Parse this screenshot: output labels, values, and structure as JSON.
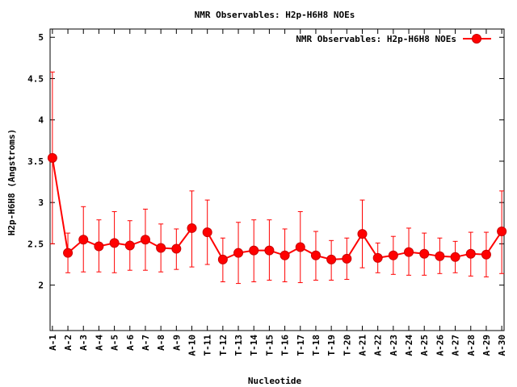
{
  "chart_data": {
    "type": "line",
    "title": "NMR Observables: H2p-H6H8 NOEs",
    "xlabel": "Nucleotide",
    "ylabel": "H2p-H6H8 (Angstroms)",
    "ylim": [
      1.45,
      5.1
    ],
    "yticks": [
      2,
      2.5,
      3,
      3.5,
      4,
      4.5,
      5
    ],
    "ytick_labels": [
      "2",
      "2.5",
      "3",
      "3.5",
      "4",
      "4.5",
      "5"
    ],
    "grid": false,
    "legend_position": "top-right",
    "categories": [
      "A-1",
      "A-2",
      "A-3",
      "A-4",
      "A-5",
      "A-6",
      "A-7",
      "A-8",
      "A-9",
      "A-10",
      "T-11",
      "T-12",
      "T-13",
      "T-14",
      "T-15",
      "T-16",
      "T-17",
      "T-18",
      "T-19",
      "T-20",
      "A-21",
      "A-22",
      "A-23",
      "A-24",
      "A-25",
      "A-26",
      "A-27",
      "A-28",
      "A-29",
      "A-30"
    ],
    "segments": [
      [
        1,
        10
      ],
      [
        11,
        30
      ]
    ],
    "series": [
      {
        "name": "NMR Observables: H2p-H6H8 NOEs",
        "color": "#ff0000",
        "x": [
          1,
          2,
          3,
          4,
          5,
          6,
          7,
          8,
          9,
          10,
          11,
          12,
          13,
          14,
          15,
          16,
          17,
          18,
          19,
          20,
          21,
          22,
          23,
          24,
          25,
          26,
          27,
          28,
          29,
          30
        ],
        "values": [
          3.54,
          2.39,
          2.55,
          2.47,
          2.51,
          2.48,
          2.55,
          2.45,
          2.44,
          2.69,
          2.64,
          2.31,
          2.39,
          2.42,
          2.42,
          2.36,
          2.46,
          2.36,
          2.31,
          2.32,
          2.62,
          2.33,
          2.36,
          2.4,
          2.38,
          2.35,
          2.34,
          2.38,
          2.37,
          2.65
        ],
        "err_low": [
          2.5,
          2.15,
          2.16,
          2.16,
          2.15,
          2.18,
          2.18,
          2.16,
          2.19,
          2.22,
          2.25,
          2.04,
          2.02,
          2.04,
          2.06,
          2.04,
          2.03,
          2.06,
          2.06,
          2.07,
          2.21,
          2.15,
          2.13,
          2.12,
          2.12,
          2.14,
          2.15,
          2.11,
          2.1,
          2.14
        ],
        "err_high": [
          4.58,
          2.63,
          2.95,
          2.79,
          2.89,
          2.78,
          2.92,
          2.74,
          2.68,
          3.14,
          3.03,
          2.57,
          2.76,
          2.79,
          2.79,
          2.68,
          2.89,
          2.65,
          2.54,
          2.57,
          3.03,
          2.51,
          2.59,
          2.69,
          2.63,
          2.57,
          2.53,
          2.64,
          2.64,
          3.14
        ]
      }
    ]
  }
}
